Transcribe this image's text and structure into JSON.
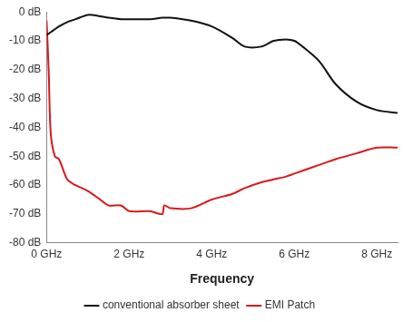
{
  "chart_data": {
    "type": "line",
    "x_label": "Frequency",
    "x": [
      0,
      0.05,
      0.1,
      0.2,
      0.3,
      0.5,
      0.7,
      1.0,
      1.3,
      1.5,
      1.8,
      2.0,
      2.5,
      2.8,
      2.85,
      3.0,
      3.5,
      4.0,
      4.5,
      4.8,
      5.2,
      5.5,
      5.8,
      6.0,
      6.2,
      6.6,
      7.0,
      7.5,
      8.0,
      8.5
    ],
    "series": [
      {
        "name": "conventional absorber sheet",
        "color": "#111111",
        "values": [
          -8,
          -7.5,
          -7,
          -6,
          -5,
          -3.5,
          -2.5,
          -1,
          -1.5,
          -2,
          -2.5,
          -2.5,
          -2.5,
          -2,
          -2,
          -2,
          -3,
          -5,
          -9,
          -12,
          -12,
          -10,
          -9.5,
          -10,
          -12,
          -17,
          -25,
          -31,
          -34,
          -35
        ]
      },
      {
        "name": "EMI Patch",
        "color": "#d7191c",
        "values": [
          -3,
          -20,
          -42,
          -50,
          -51,
          -58,
          -60,
          -62,
          -65,
          -67,
          -67,
          -69,
          -69,
          -70,
          -67,
          -68,
          -68,
          -65,
          -63,
          -61,
          -59,
          -58,
          -57,
          -56,
          -55,
          -53,
          -51,
          -49,
          -47,
          -47
        ]
      }
    ],
    "xlim": [
      0,
      8.5
    ],
    "xticks": [
      {
        "value": 0,
        "label": "0 GHz"
      },
      {
        "value": 2,
        "label": "2 GHz"
      },
      {
        "value": 4,
        "label": "4 GHz"
      },
      {
        "value": 6,
        "label": "6 GHz"
      },
      {
        "value": 8,
        "label": "8 GHz"
      }
    ],
    "ylim": [
      -80,
      0
    ],
    "yticks": [
      {
        "value": 0,
        "label": "0 dB"
      },
      {
        "value": -10,
        "label": "-10 dB"
      },
      {
        "value": -20,
        "label": "-20 dB"
      },
      {
        "value": -30,
        "label": "-30 dB"
      },
      {
        "value": -40,
        "label": "-40 dB"
      },
      {
        "value": -50,
        "label": "-50 dB"
      },
      {
        "value": -60,
        "label": "-60 dB"
      },
      {
        "value": -70,
        "label": "-70 dB"
      },
      {
        "value": -80,
        "label": "-80 dB"
      }
    ],
    "grid": false,
    "legend": "bottom"
  }
}
